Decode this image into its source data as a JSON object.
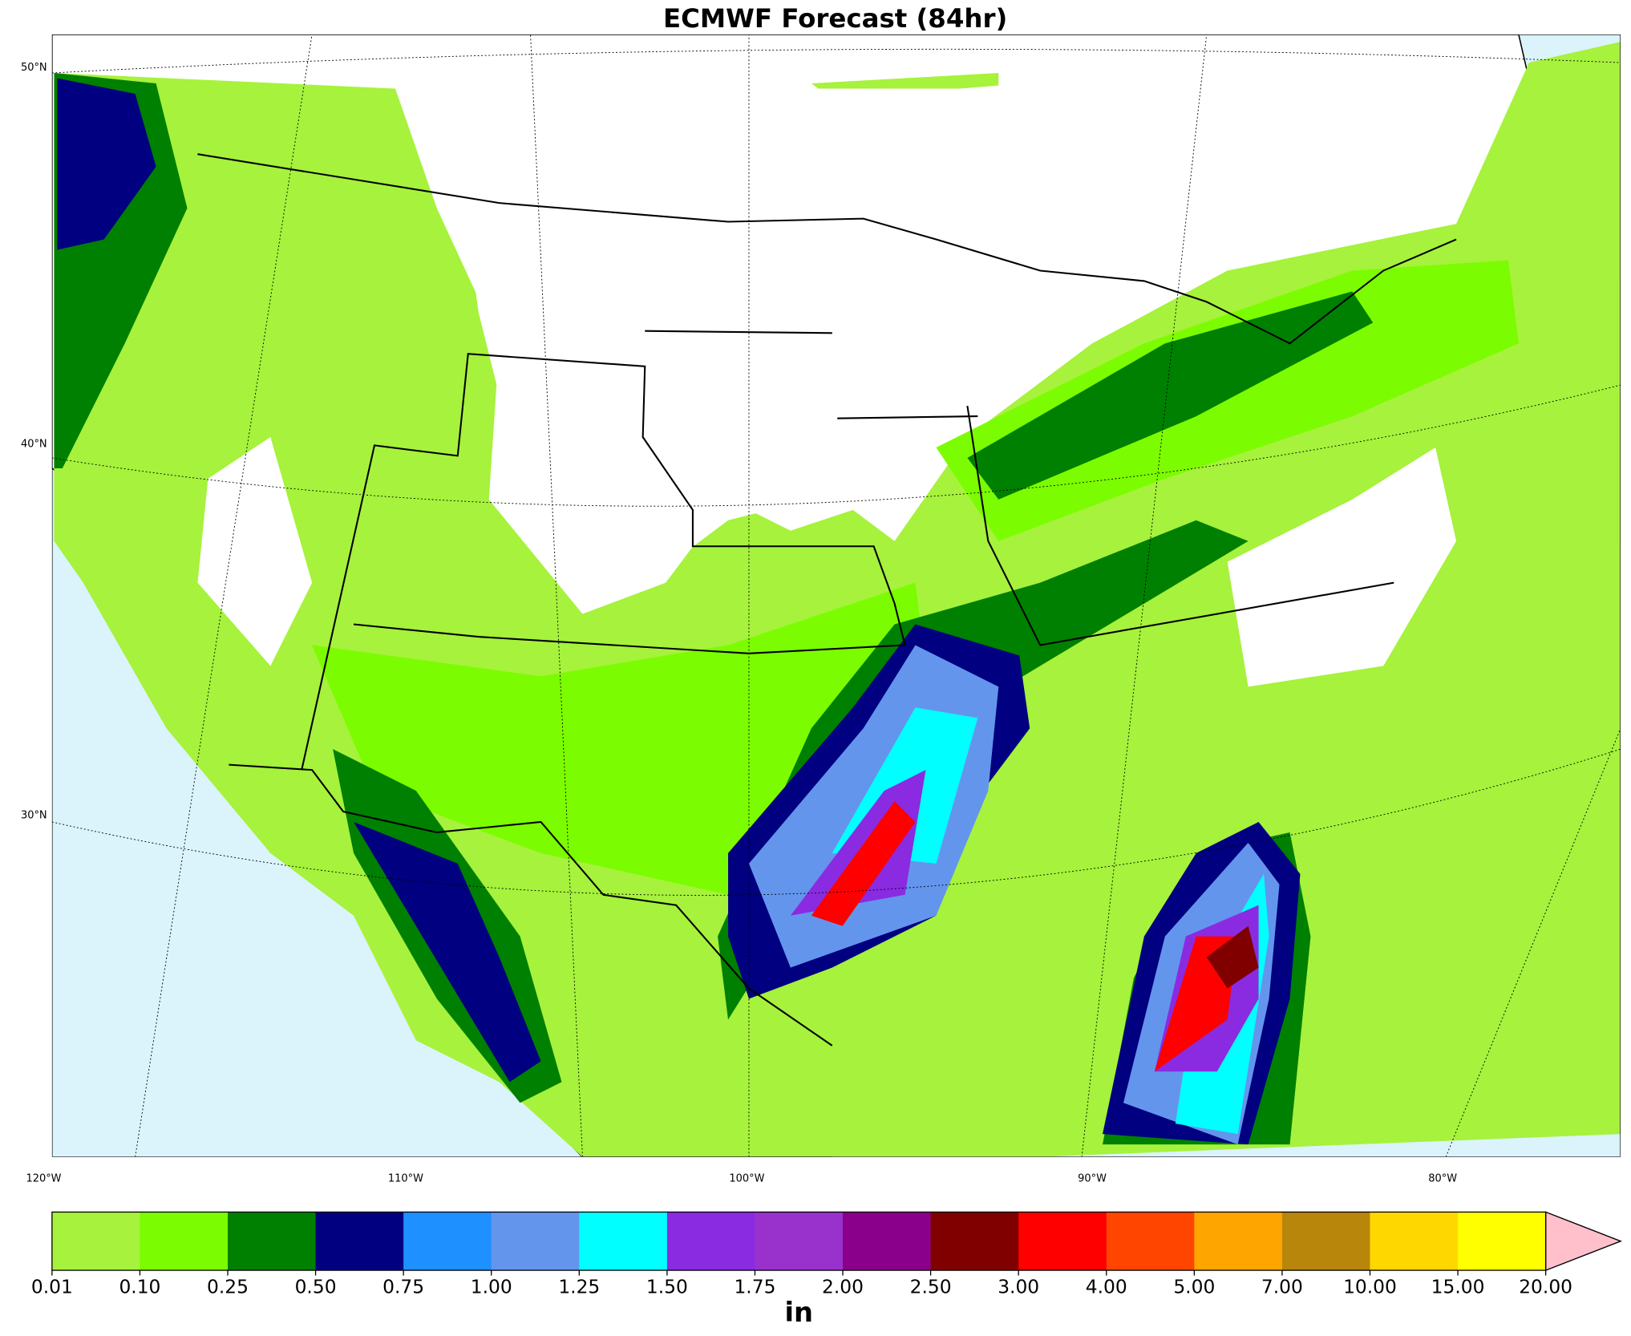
{
  "title": "ECMWF Forecast (84hr)",
  "lat_labels": [
    "50°N",
    "40°N",
    "30°N"
  ],
  "lon_labels": [
    "120°W",
    "110°W",
    "100°W",
    "90°W",
    "80°W"
  ],
  "colorbar": {
    "unit": "in",
    "ticks": [
      {
        "value": 0.01,
        "label": "0.01"
      },
      {
        "value": 0.1,
        "label": "0.10"
      },
      {
        "value": 0.25,
        "label": "0.25"
      },
      {
        "value": 0.5,
        "label": "0.50"
      },
      {
        "value": 0.75,
        "label": "0.75"
      },
      {
        "value": 1,
        "label": "1.00"
      },
      {
        "value": 1.25,
        "label": "1.25"
      },
      {
        "value": 1.5,
        "label": "1.50"
      },
      {
        "value": 1.75,
        "label": "1.75"
      },
      {
        "value": 2,
        "label": "2.00"
      },
      {
        "value": 2.5,
        "label": "2.50"
      },
      {
        "value": 3,
        "label": "3.00"
      },
      {
        "value": 4,
        "label": "4.00"
      },
      {
        "value": 5,
        "label": "5.00"
      },
      {
        "value": 7,
        "label": "7.00"
      },
      {
        "value": 10,
        "label": "10.00"
      },
      {
        "value": 15,
        "label": "15.00"
      },
      {
        "value": 20,
        "label": "20.00"
      }
    ],
    "colors": [
      "#a6f23c",
      "#7cfc00",
      "#008000",
      "#000080",
      "#1e90ff",
      "#6495ed",
      "#00ffff",
      "#8a2be2",
      "#9932cc",
      "#8b008b",
      "#800000",
      "#ff0000",
      "#ff4500",
      "#ffa500",
      "#b8860b",
      "#ffd700",
      "#ffff00"
    ],
    "over_color": "#ffc0cb"
  }
}
